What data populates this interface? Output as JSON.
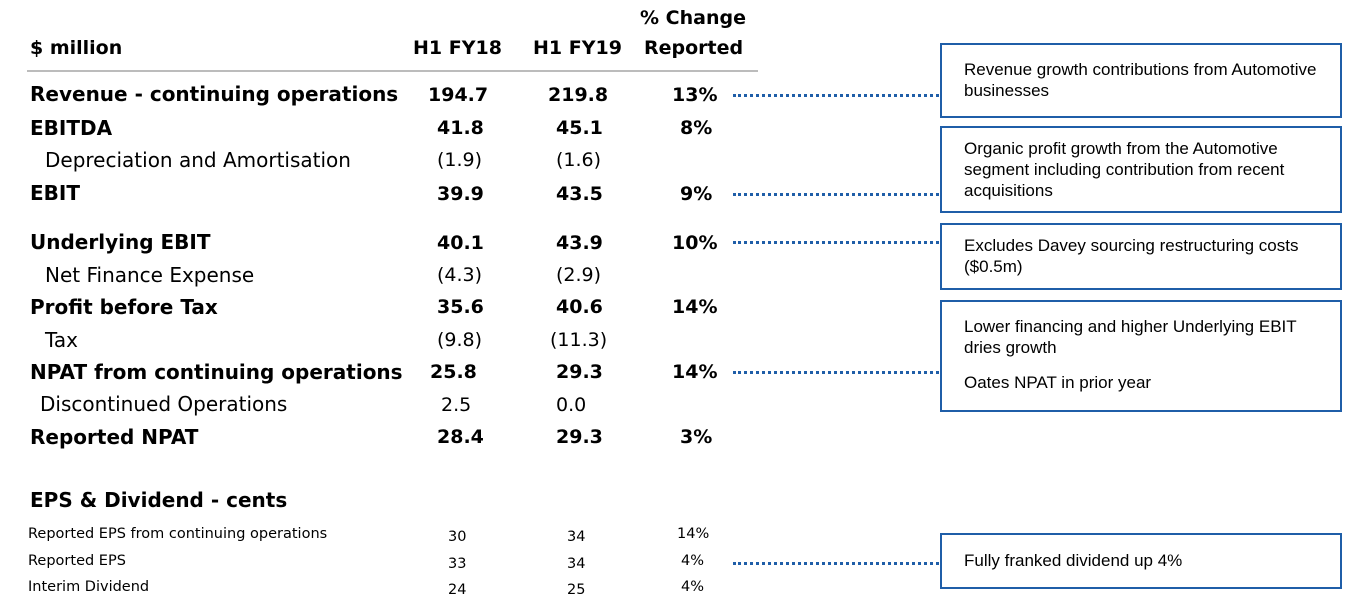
{
  "header": {
    "label_col": "$ million",
    "col1": "H1 FY18",
    "col2": "H1 FY19",
    "col3_line1": "% Change",
    "col3_line2": "Reported"
  },
  "rows": [
    {
      "label": "Revenue - continuing operations",
      "v1": "194.7",
      "v2": "219.8",
      "chg": "13%"
    },
    {
      "label": "EBITDA",
      "v1": "41.8",
      "v2": "45.1",
      "chg": "8%"
    },
    {
      "label": "Depreciation and Amortisation",
      "v1": "(1.9)",
      "v2": "(1.6)",
      "chg": ""
    },
    {
      "label": "EBIT",
      "v1": "39.9",
      "v2": "43.5",
      "chg": "9%"
    },
    {
      "label": "Underlying EBIT",
      "v1": "40.1",
      "v2": "43.9",
      "chg": "10%"
    },
    {
      "label": "Net Finance Expense",
      "v1": "(4.3)",
      "v2": "(2.9)",
      "chg": ""
    },
    {
      "label": "Profit before Tax",
      "v1": "35.6",
      "v2": "40.6",
      "chg": "14%"
    },
    {
      "label": "Tax",
      "v1": "(9.8)",
      "v2": "(11.3)",
      "chg": ""
    },
    {
      "label": "NPAT from continuing operations",
      "v1": "25.8",
      "v2": "29.3",
      "chg": "14%"
    },
    {
      "label": "Discontinued Operations",
      "v1": "2.5",
      "v2": "0.0",
      "chg": ""
    },
    {
      "label": "Reported NPAT",
      "v1": "28.4",
      "v2": "29.3",
      "chg": "3%"
    }
  ],
  "eps": {
    "title": "EPS & Dividend - cents",
    "rows": [
      {
        "label": "Reported EPS from continuing operations",
        "v1": "30",
        "v2": "34",
        "chg": "14%"
      },
      {
        "label": "Reported EPS",
        "v1": "33",
        "v2": "34",
        "chg": "4%"
      },
      {
        "label": "Interim Dividend",
        "v1": "24",
        "v2": "25",
        "chg": "4%"
      }
    ]
  },
  "notes": [
    {
      "text": "Revenue growth contributions from Automotive businesses"
    },
    {
      "text": "Organic profit growth from the Automotive segment including contribution from recent acquisitions"
    },
    {
      "text": "Excludes Davey sourcing restructuring costs ($0.5m)"
    },
    {
      "text": "Lower financing and higher Underlying EBIT dries growth",
      "text2": "Oates NPAT in prior year"
    },
    {
      "text": "Fully franked dividend up 4%"
    }
  ],
  "colors": {
    "accent": "#1f5ea8",
    "rule": "#bcbcbc"
  }
}
